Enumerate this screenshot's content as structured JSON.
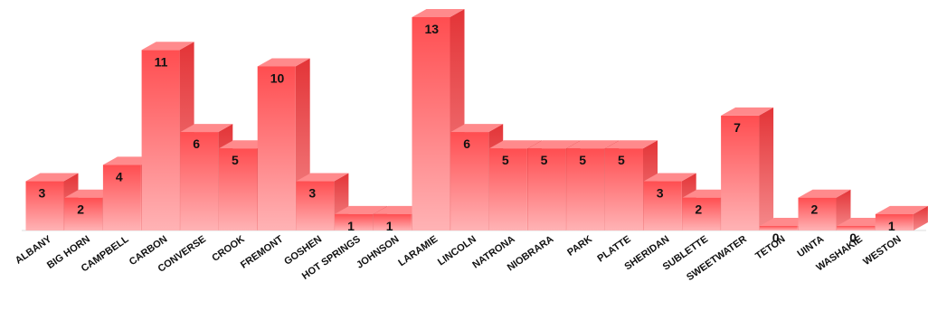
{
  "chart_data": {
    "type": "bar",
    "style": "3d-columns",
    "categories": [
      "ALBANY",
      "BIG HORN",
      "CAMPBELL",
      "CARBON",
      "CONVERSE",
      "CROOK",
      "FREMONT",
      "GOSHEN",
      "HOT SPRINGS",
      "JOHNSON",
      "LARAMIE",
      "LINCOLN",
      "NATRONA",
      "NIOBRARA",
      "PARK",
      "PLATTE",
      "SHERIDAN",
      "SUBLETTE",
      "SWEETWATER",
      "TETON",
      "UINTA",
      "WASHAKIE",
      "WESTON"
    ],
    "values": [
      3,
      2,
      4,
      11,
      6,
      5,
      10,
      3,
      1,
      1,
      13,
      6,
      5,
      5,
      5,
      5,
      3,
      2,
      7,
      0,
      2,
      0,
      1
    ],
    "title": "",
    "xlabel": "",
    "ylabel": "",
    "ylim": [
      0,
      13
    ],
    "grid": false,
    "legend": "none",
    "colors": {
      "front_top": "#ff4d50",
      "front_bottom": "#ffb3b5",
      "side": "#e33437",
      "top": "#ff8a8c",
      "label": "#111111"
    }
  }
}
